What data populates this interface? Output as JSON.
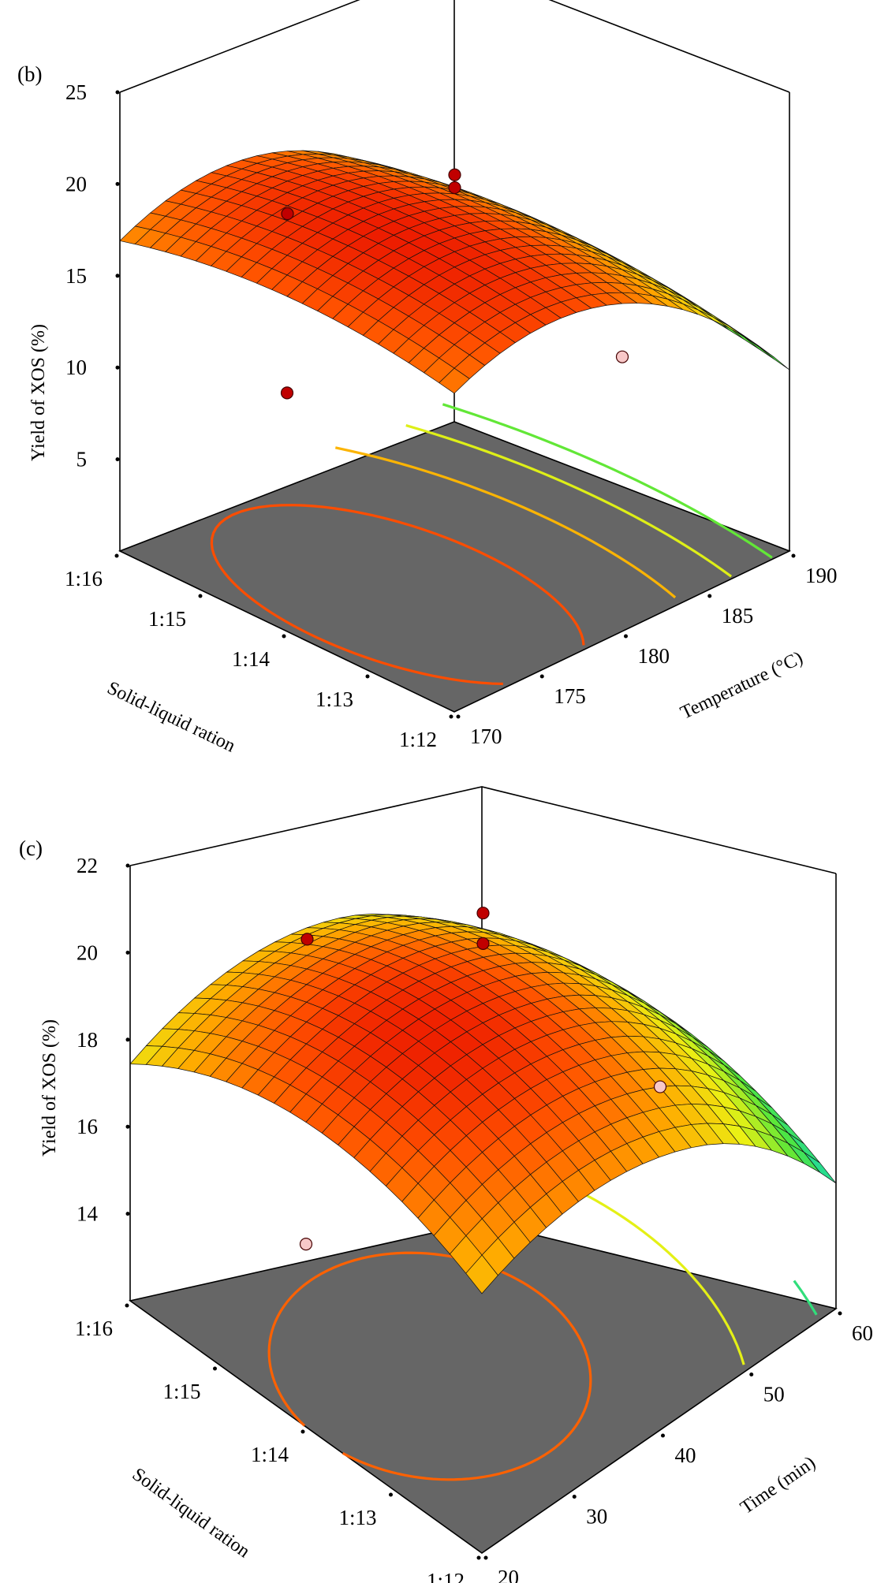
{
  "chart_data": [
    {
      "type": "surface3d",
      "panel_label": "(b)",
      "zlabel": "Yield of XOS (%)",
      "xlabel": "Solid-liquid ration",
      "ylabel": "Temperature (°C)",
      "x_ticks": [
        "1:16",
        "1:15",
        "1:14",
        "1:13",
        "1:12"
      ],
      "y_ticks": [
        "170",
        "175",
        "180",
        "185",
        "190"
      ],
      "z_ticks": [
        "5",
        "10",
        "15",
        "20",
        "25"
      ],
      "zlim": [
        0,
        25
      ],
      "surface_range": [
        7,
        20
      ],
      "contour_levels": [
        8.5,
        11,
        13.5,
        16,
        18.5
      ],
      "design_points": [
        {
          "solid_liquid": "1:16",
          "temperature": 180,
          "yield": 14.0,
          "side": "above"
        },
        {
          "solid_liquid": "1:14",
          "temperature": 180,
          "yield": 20.5,
          "side": "above"
        },
        {
          "solid_liquid": "1:14",
          "temperature": 180,
          "yield": 19.8,
          "side": "above"
        },
        {
          "solid_liquid": "1:14",
          "temperature": 170,
          "yield": 13.0,
          "side": "above"
        },
        {
          "solid_liquid": "1:14",
          "temperature": 190,
          "yield": 6.2,
          "side": "below"
        }
      ]
    },
    {
      "type": "surface3d",
      "panel_label": "(c)",
      "zlabel": "Yield of XOS (%)",
      "xlabel": "Solid-liquid ration",
      "ylabel": "Time (min)",
      "x_ticks": [
        "1:16",
        "1:15",
        "1:14",
        "1:13",
        "1:12"
      ],
      "y_ticks": [
        "20",
        "30",
        "40",
        "50",
        "60"
      ],
      "z_ticks": [
        "14",
        "16",
        "18",
        "20",
        "22"
      ],
      "zlim": [
        12,
        22
      ],
      "surface_range": [
        14.5,
        19.8
      ],
      "contour_levels": [
        15.4,
        17.2,
        19.0
      ],
      "design_points": [
        {
          "solid_liquid": "1:16",
          "time": 40,
          "yield": 17.5,
          "side": "above"
        },
        {
          "solid_liquid": "1:14",
          "time": 40,
          "yield": 21.0,
          "side": "above"
        },
        {
          "solid_liquid": "1:14",
          "time": 40,
          "yield": 20.3,
          "side": "above"
        },
        {
          "solid_liquid": "1:14",
          "time": 20,
          "yield": 16.2,
          "side": "below"
        },
        {
          "solid_liquid": "1:14",
          "time": 60,
          "yield": 14.2,
          "side": "below"
        }
      ]
    }
  ]
}
